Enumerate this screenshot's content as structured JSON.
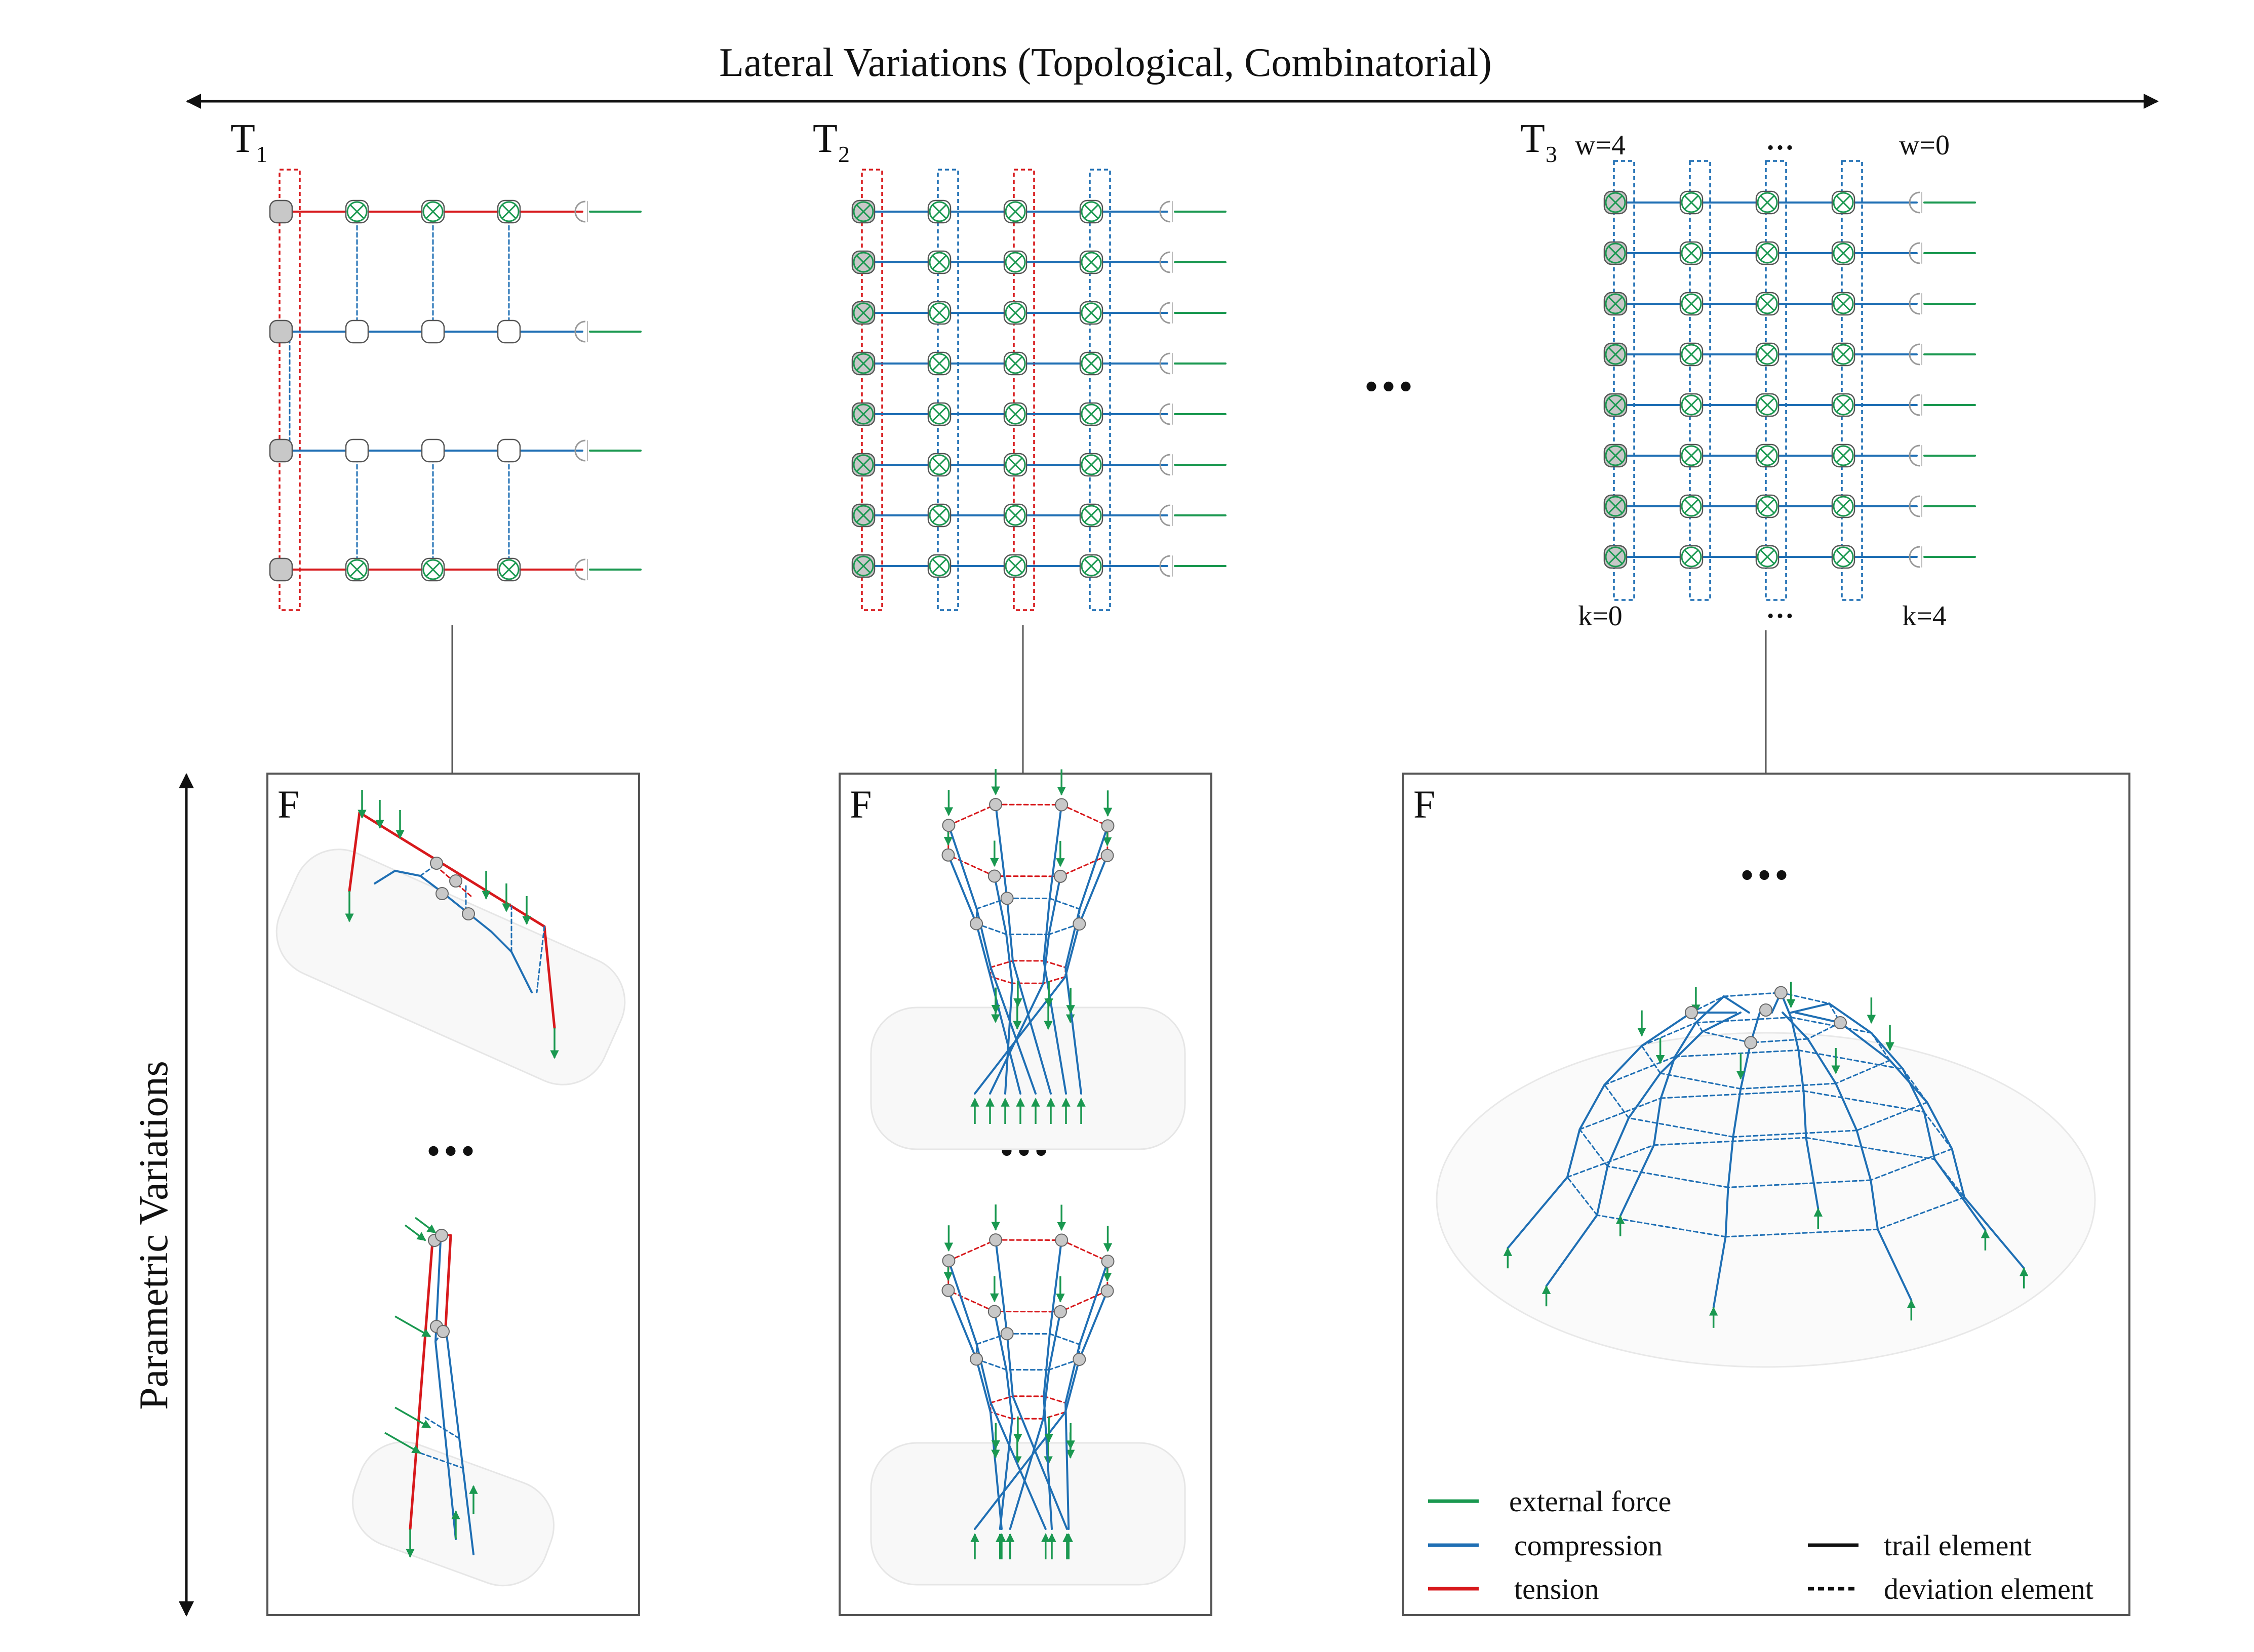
{
  "title_lateral": "Lateral Variations (Topological, Combinatorial)",
  "title_parametric": "Parametric Variations",
  "topologies": [
    {
      "label": "T",
      "sub": "1"
    },
    {
      "label": "T",
      "sub": "2"
    },
    {
      "label": "T",
      "sub": "3"
    }
  ],
  "t3_annotations": {
    "w_left": "w=4",
    "w_dots": "…",
    "w_right": "w=0",
    "k_left": "k=0",
    "k_dots": "…",
    "k_right": "k=4"
  },
  "ellipsis": "•••",
  "form_label": "F",
  "colors": {
    "external_force": "#1a9850",
    "compression": "#1f6fb4",
    "tension": "#d7191c",
    "node_gray": "#c8c8c8",
    "frame": "#555555"
  },
  "legend": {
    "external_force": "external force",
    "compression": "compression",
    "tension": "tension",
    "trail_element": "trail element",
    "deviation_element": "deviation element"
  }
}
